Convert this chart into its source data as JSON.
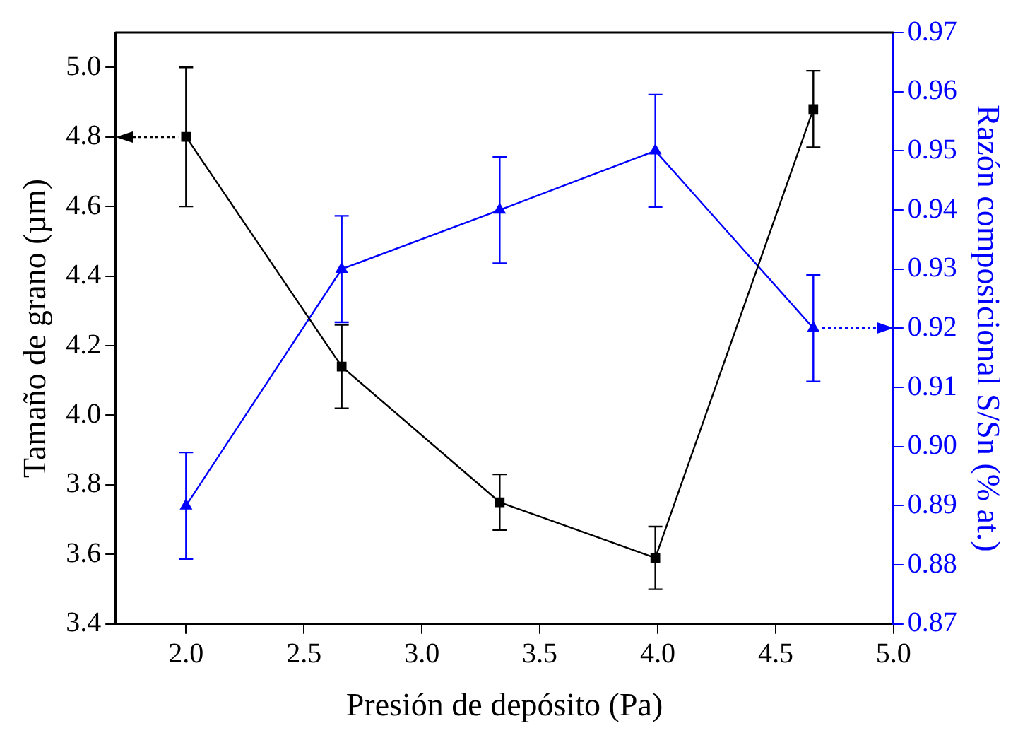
{
  "chart_data": {
    "type": "line",
    "xlabel": "Presión de depósito (Pa)",
    "ylabel": "Tamaño de grano (µm)",
    "y2label": "Razón composicional S/Sn (% at.)",
    "x": [
      2.0,
      2.66,
      3.33,
      3.99,
      4.66
    ],
    "xlim": [
      1.7,
      5.0
    ],
    "xticks": [
      {
        "value": 2,
        "label": "2.0"
      },
      2.5,
      {
        "value": 3,
        "label": "3.0"
      },
      3.5,
      {
        "value": 4,
        "label": "4.0"
      },
      4.5,
      {
        "value": 5,
        "label": "5.0"
      }
    ],
    "ylim": [
      3.4,
      5.1
    ],
    "yticks": [
      3.4,
      3.6,
      3.8,
      {
        "value": 4,
        "label": "4.0"
      },
      4.2,
      4.4,
      4.6,
      4.8,
      {
        "value": 5,
        "label": "5.0"
      }
    ],
    "y2lim": [
      0.87,
      0.97
    ],
    "y2ticks": [
      0.87,
      0.88,
      0.89,
      {
        "value": 0.9,
        "label": "0.90"
      },
      0.91,
      0.92,
      0.93,
      0.94,
      0.95,
      0.96,
      0.97
    ],
    "grid": false,
    "legend": false,
    "line_style": "solid",
    "series": [
      {
        "color": "#000000",
        "marker": "square",
        "values": [
          4.8,
          4.14,
          3.75,
          3.59,
          4.88
        ],
        "errors": [
          0.2,
          0.12,
          0.08,
          0.09,
          0.11
        ]
      },
      {
        "color": "#0000ff",
        "marker": "triangle",
        "axis": "y2",
        "values": [
          0.89,
          0.93,
          0.94,
          0.95,
          0.92
        ],
        "errors": [
          0.009,
          0.009,
          0.009,
          0.0095,
          0.009
        ]
      }
    ]
  }
}
